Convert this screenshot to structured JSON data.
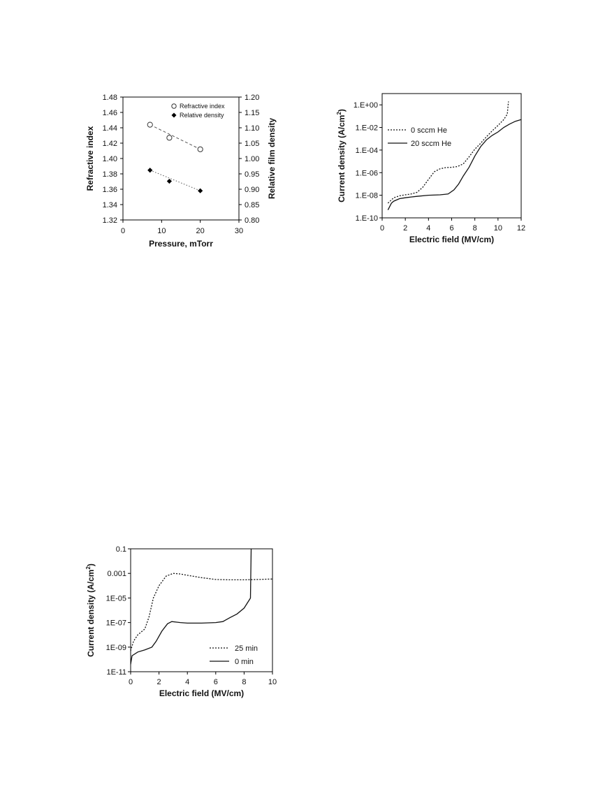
{
  "chart_data": [
    {
      "type": "scatter",
      "title": "",
      "xlabel": "Pressure, mTorr",
      "ylabel": "Refractive index",
      "y2label": "Relative film density",
      "xlim": [
        0,
        30
      ],
      "ylim": [
        1.32,
        1.48
      ],
      "y2lim": [
        0.8,
        1.2
      ],
      "x_ticks": [
        "0",
        "10",
        "20",
        "30"
      ],
      "y_ticks": [
        "1.32",
        "1.34",
        "1.36",
        "1.38",
        "1.40",
        "1.42",
        "1.44",
        "1.46",
        "1.48"
      ],
      "y2_ticks": [
        "0.80",
        "0.85",
        "0.90",
        "0.95",
        "1.00",
        "1.05",
        "1.10",
        "1.15",
        "1.20"
      ],
      "legend_position": "top-right",
      "series": [
        {
          "name": "Refractive index",
          "axis": "left",
          "marker": "open-circle",
          "trendline": "dashed",
          "points": [
            {
              "x": 7,
              "y": 1.444
            },
            {
              "x": 12,
              "y": 1.427
            },
            {
              "x": 20,
              "y": 1.412
            }
          ]
        },
        {
          "name": "Relative density",
          "axis": "right",
          "marker": "filled-diamond",
          "trendline": "dotted",
          "points": [
            {
              "x": 7,
              "y": 0.962
            },
            {
              "x": 12,
              "y": 0.926
            },
            {
              "x": 20,
              "y": 0.895
            }
          ]
        }
      ]
    },
    {
      "type": "line",
      "title": "",
      "xlabel": "Electric field (MV/cm)",
      "ylabel": "Current density (A/cm",
      "ylabel_sup": "2",
      "ylabel_end": ")",
      "xlim": [
        0,
        12
      ],
      "ylim": [
        1e-10,
        10
      ],
      "yscale": "log",
      "x_ticks": [
        "0",
        "2",
        "4",
        "6",
        "8",
        "10",
        "12"
      ],
      "y_ticks": [
        "1.E-10",
        "1.E-08",
        "1.E-06",
        "1.E-04",
        "1.E-02",
        "1.E+00"
      ],
      "legend_position": "top-left",
      "series": [
        {
          "name": "0 sccm He",
          "style": "dotted",
          "points": [
            [
              0.5,
              2e-09
            ],
            [
              1,
              6e-09
            ],
            [
              1.5,
              9e-09
            ],
            [
              2,
              1.1e-08
            ],
            [
              2.5,
              1.3e-08
            ],
            [
              3,
              1.8e-08
            ],
            [
              3.5,
              5e-08
            ],
            [
              4,
              2.5e-07
            ],
            [
              4.5,
              1.2e-06
            ],
            [
              5,
              2.2e-06
            ],
            [
              5.5,
              2.8e-06
            ],
            [
              6,
              3e-06
            ],
            [
              6.5,
              3.5e-06
            ],
            [
              7,
              6e-06
            ],
            [
              7.5,
              2.5e-05
            ],
            [
              8,
              0.00012
            ],
            [
              8.5,
              0.0004
            ],
            [
              9,
              0.0015
            ],
            [
              9.5,
              0.005
            ],
            [
              10,
              0.015
            ],
            [
              10.5,
              0.05
            ],
            [
              10.8,
              0.15
            ],
            [
              10.9,
              2
            ]
          ]
        },
        {
          "name": "20 sccm He",
          "style": "solid",
          "points": [
            [
              0.5,
              5e-10
            ],
            [
              0.8,
              2e-09
            ],
            [
              1,
              3e-09
            ],
            [
              1.5,
              5e-09
            ],
            [
              2,
              6e-09
            ],
            [
              2.5,
              7e-09
            ],
            [
              3,
              8e-09
            ],
            [
              4,
              1e-08
            ],
            [
              5,
              1.1e-08
            ],
            [
              5.7,
              1.3e-08
            ],
            [
              6.2,
              3e-08
            ],
            [
              6.6,
              1e-07
            ],
            [
              7,
              5e-07
            ],
            [
              7.5,
              3e-06
            ],
            [
              8,
              3e-05
            ],
            [
              8.5,
              0.0002
            ],
            [
              9,
              0.0008
            ],
            [
              9.5,
              0.002
            ],
            [
              10,
              0.004
            ],
            [
              10.5,
              0.01
            ],
            [
              11,
              0.02
            ],
            [
              11.5,
              0.035
            ],
            [
              12,
              0.05
            ]
          ]
        }
      ]
    },
    {
      "type": "line",
      "title": "",
      "xlabel": "Electric field (MV/cm)",
      "ylabel": "Current density (A/cm",
      "ylabel_sup": "2",
      "ylabel_end": ")",
      "xlim": [
        0,
        10
      ],
      "ylim": [
        1e-11,
        0.1
      ],
      "yscale": "log",
      "x_ticks": [
        "0",
        "2",
        "4",
        "6",
        "8",
        "10"
      ],
      "y_ticks": [
        "1E-11",
        "1E-09",
        "1E-07",
        "1E-05",
        "0.001",
        "0.1"
      ],
      "legend_position": "bottom-right",
      "series": [
        {
          "name": "25  min",
          "style": "dotted",
          "points": [
            [
              0,
              5e-10
            ],
            [
              0.2,
              3e-09
            ],
            [
              0.5,
              1e-08
            ],
            [
              1,
              3e-08
            ],
            [
              1.3,
              3e-07
            ],
            [
              1.6,
              1e-05
            ],
            [
              2,
              0.0001
            ],
            [
              2.5,
              0.0006
            ],
            [
              3,
              0.001
            ],
            [
              3.5,
              0.0009
            ],
            [
              4,
              0.0007
            ],
            [
              5,
              0.00045
            ],
            [
              6,
              0.00032
            ],
            [
              7,
              0.0003
            ],
            [
              8,
              0.0003
            ],
            [
              9,
              0.00032
            ],
            [
              10,
              0.00035
            ]
          ]
        },
        {
          "name": "0   min",
          "style": "solid",
          "points": [
            [
              0,
              4e-11
            ],
            [
              0.1,
              2e-10
            ],
            [
              0.5,
              4e-10
            ],
            [
              1,
              6e-10
            ],
            [
              1.5,
              1e-09
            ],
            [
              1.8,
              3e-09
            ],
            [
              2.2,
              2e-08
            ],
            [
              2.6,
              8e-08
            ],
            [
              2.9,
              1.2e-07
            ],
            [
              3.5,
              1e-07
            ],
            [
              4,
              9e-08
            ],
            [
              5,
              9e-08
            ],
            [
              6,
              1e-07
            ],
            [
              6.5,
              1.2e-07
            ],
            [
              7,
              2.5e-07
            ],
            [
              7.5,
              5e-07
            ],
            [
              8,
              1.5e-06
            ],
            [
              8.4,
              8e-06
            ],
            [
              8.45,
              1e-05
            ],
            [
              8.5,
              0.1
            ]
          ]
        }
      ]
    }
  ]
}
